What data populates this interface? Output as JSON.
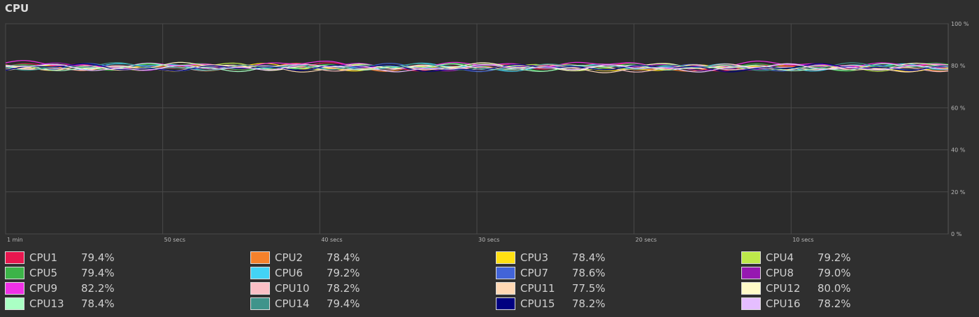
{
  "title": "CPU",
  "colors": {
    "background": "#2f2f2f",
    "plot_background": "#2b2b2b",
    "grid": "#4a4a4a"
  },
  "chart_data": {
    "type": "line",
    "ylim": [
      0,
      100
    ],
    "y_ticks": [
      "100 %",
      "80 %",
      "60 %",
      "40 %",
      "20 %",
      "0 %"
    ],
    "y_tick_values": [
      100,
      80,
      60,
      40,
      20,
      0
    ],
    "x_ticks": [
      "1 min",
      "50 secs",
      "40 secs",
      "30 secs",
      "20 secs",
      "10 secs"
    ],
    "x_tick_values": [
      60,
      50,
      40,
      30,
      20,
      10
    ],
    "xlim": [
      60,
      0
    ],
    "grid": true,
    "legend_position": "bottom",
    "series": [
      {
        "name": "CPU1",
        "value_label": "79.4%",
        "value": 79.4,
        "color": "#e8174f"
      },
      {
        "name": "CPU2",
        "value_label": "78.4%",
        "value": 78.4,
        "color": "#f5812b"
      },
      {
        "name": "CPU3",
        "value_label": "78.4%",
        "value": 78.4,
        "color": "#ffe012"
      },
      {
        "name": "CPU4",
        "value_label": "79.2%",
        "value": 79.2,
        "color": "#bde94a"
      },
      {
        "name": "CPU5",
        "value_label": "79.4%",
        "value": 79.4,
        "color": "#3cb448"
      },
      {
        "name": "CPU6",
        "value_label": "79.2%",
        "value": 79.2,
        "color": "#43d3f5"
      },
      {
        "name": "CPU7",
        "value_label": "78.6%",
        "value": 78.6,
        "color": "#4264d8"
      },
      {
        "name": "CPU8",
        "value_label": "79.0%",
        "value": 79.0,
        "color": "#9618b1"
      },
      {
        "name": "CPU9",
        "value_label": "82.2%",
        "value": 82.2,
        "color": "#f030e6"
      },
      {
        "name": "CPU10",
        "value_label": "78.2%",
        "value": 78.2,
        "color": "#fabfc5"
      },
      {
        "name": "CPU11",
        "value_label": "77.5%",
        "value": 77.5,
        "color": "#ffd8b4"
      },
      {
        "name": "CPU12",
        "value_label": "80.0%",
        "value": 80.0,
        "color": "#fffbc8"
      },
      {
        "name": "CPU13",
        "value_label": "78.4%",
        "value": 78.4,
        "color": "#aaffc4"
      },
      {
        "name": "CPU14",
        "value_label": "79.4%",
        "value": 79.4,
        "color": "#3f948b"
      },
      {
        "name": "CPU15",
        "value_label": "78.2%",
        "value": 78.2,
        "color": "#000080"
      },
      {
        "name": "CPU16",
        "value_label": "78.2%",
        "value": 78.2,
        "color": "#e5beff"
      }
    ]
  }
}
